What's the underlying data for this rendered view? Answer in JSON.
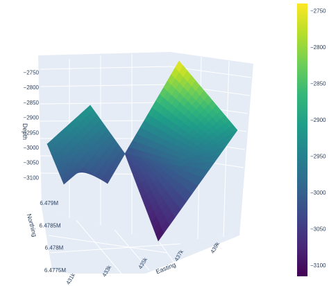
{
  "chart_data": {
    "type": "surface",
    "colorscale": "Viridis",
    "colors": {
      "viridis": [
        "#440154",
        "#482878",
        "#3e4989",
        "#31688e",
        "#26828e",
        "#1f9e89",
        "#35b779",
        "#6ece58",
        "#b5de2b",
        "#fde725"
      ],
      "pane_background": "#e5ecf6",
      "grid": "#ffffff",
      "text": "#2a3f5f"
    },
    "axes": {
      "x": {
        "title": "Easting",
        "tick_labels": [
          "433k",
          "435k",
          "437k",
          "439k"
        ],
        "partial_labels": [
          "431k"
        ]
      },
      "y": {
        "title": "Northing",
        "tick_labels": [
          "6.4775M",
          "6.478M",
          "6.4785M",
          "6.479M"
        ]
      },
      "z": {
        "title": "Depth",
        "tick_labels": [
          "−3100",
          "−3050",
          "−3000",
          "−2950",
          "−2900",
          "−2850",
          "−2800",
          "−2750"
        ],
        "range": [
          -3115,
          -2740
        ]
      }
    },
    "colorbar": {
      "tick_labels": [
        "−2750",
        "−2800",
        "−2850",
        "−2900",
        "−2950",
        "−3000",
        "−3050",
        "−3100"
      ],
      "range": [
        -3115,
        -2740
      ]
    },
    "surface_corners": {
      "left_fault_block": {
        "west_north": -2965,
        "peak": -2915,
        "east_north": -3005,
        "west_south": -3015,
        "east_south": -3030
      },
      "main_block": {
        "north_peak": -2745,
        "east_corner": -2915,
        "south_trough": -3100,
        "west_low": -3025
      }
    }
  }
}
